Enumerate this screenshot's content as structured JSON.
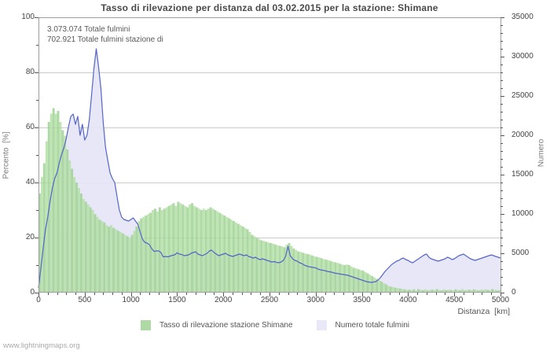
{
  "title": "Tasso di rilevazione per distanza dal 03.02.2015 per la stazione: Shimane",
  "annotations": {
    "line1": "3.073.074 Totale fulmini",
    "line2": "702.921 Totale fulmini stazione di"
  },
  "watermark": "www.lightningmaps.org",
  "legend": {
    "items": [
      {
        "label": "Tasso di rilevazione stazione Shimane",
        "color": "#aed8a4"
      },
      {
        "label": "Numero totale fulmini",
        "color": "#e8e8f8"
      }
    ]
  },
  "colors": {
    "bar_fill_even": "rgba(160,209,150,0.85)",
    "bar_fill_odd": "rgba(180,224,166,0.85)",
    "area_fill": "rgba(228,228,247,0.9)",
    "line": "#5464c8",
    "grid": "#cbcbcb",
    "border": "#9e9e9e",
    "tick": "#555555"
  },
  "chart_data": {
    "type": "composite",
    "subtypes": [
      "bar",
      "area-line"
    ],
    "title": "Tasso di rilevazione per distanza dal 03.02.2015 per la stazione: Shimane",
    "xlabel": "Distanza  [km]",
    "ylabel_left": "Percento  [%]",
    "ylabel_right": "Numero",
    "x_range": [
      0,
      5000
    ],
    "y_left_range": [
      0,
      100
    ],
    "y_right_range": [
      0,
      35000
    ],
    "x_ticks": [
      0,
      500,
      1000,
      1500,
      2000,
      2500,
      3000,
      3500,
      4000,
      4500,
      5000
    ],
    "y_left_ticks": [
      0,
      20,
      40,
      60,
      80,
      100
    ],
    "y_right_ticks": [
      0,
      5000,
      10000,
      15000,
      20000,
      25000,
      30000,
      35000
    ],
    "x_minor_step": 100,
    "y_left_minor_step": 10,
    "y_right_minor_step": 1000,
    "grid": "horizontal-only",
    "legend_position": "bottom-center",
    "x_start": 0,
    "x_step": 25,
    "series": [
      {
        "name": "Tasso di rilevazione stazione Shimane",
        "type": "bar",
        "axis": "left",
        "unit": "%",
        "values": [
          36,
          42,
          47,
          55,
          62,
          65,
          67,
          65,
          66,
          62,
          59,
          57,
          52,
          48,
          45,
          42,
          40,
          38,
          36,
          34,
          33,
          32,
          31,
          30,
          28.5,
          27.5,
          26.5,
          26,
          25.5,
          24.5,
          24,
          24.5,
          23.5,
          23,
          22.5,
          22,
          21.5,
          21,
          20.5,
          20,
          21,
          22.5,
          24,
          26,
          27,
          27.5,
          28,
          28.5,
          29,
          30,
          30.5,
          29.5,
          31,
          30,
          30.5,
          31,
          31.5,
          32,
          32.5,
          31.5,
          33,
          32.5,
          32,
          31.5,
          31,
          32,
          32.5,
          31.5,
          31,
          30.5,
          30,
          30.5,
          30,
          30.5,
          31,
          30.5,
          30,
          29.5,
          29,
          28.5,
          28,
          27.5,
          27,
          26.5,
          26,
          25.5,
          25,
          24.5,
          24,
          23.5,
          23,
          22,
          21,
          20.5,
          20,
          19.5,
          19,
          18.8,
          18.5,
          18.2,
          18,
          17.8,
          17.5,
          17.2,
          17,
          16.8,
          16.5,
          17.5,
          18,
          17,
          16,
          15.5,
          15,
          14.8,
          14.5,
          14.2,
          14,
          13.8,
          13.5,
          13.2,
          13,
          12.8,
          12.5,
          12.2,
          12,
          11.8,
          11.5,
          11.2,
          11,
          10.8,
          10.5,
          10.2,
          10,
          10.2,
          10,
          9.5,
          9,
          8.8,
          8.5,
          8.2,
          8,
          7.5,
          7,
          6.5,
          6,
          5.5,
          5,
          4.5,
          4,
          3.5,
          3,
          2.5,
          2.2,
          2,
          1.8,
          1.6,
          1.5,
          1.3,
          1.2,
          1,
          1.1,
          0.9,
          1.2,
          0.8,
          1.3,
          1,
          0.9,
          1.2,
          0.8,
          1,
          1.1,
          0.9,
          1.3,
          1,
          0.8,
          1.2,
          0.9,
          1.1,
          1,
          0.8,
          1.2,
          1,
          0.9,
          1.3,
          0.8,
          1,
          1.1,
          0.9,
          1.2,
          1,
          0.8,
          1.1,
          0.9,
          1.2,
          1,
          0.9,
          1.3,
          1,
          0.8,
          1.1,
          1
        ]
      },
      {
        "name": "Numero totale fulmini",
        "type": "area-line",
        "axis": "right",
        "unit": "fulmini",
        "values": [
          600,
          3000,
          5600,
          8000,
          9600,
          11600,
          13300,
          14500,
          15200,
          16500,
          17600,
          18400,
          19600,
          21100,
          22400,
          22700,
          21400,
          22400,
          20000,
          21400,
          19400,
          20000,
          22000,
          25200,
          28500,
          31000,
          28700,
          26000,
          21700,
          18500,
          16800,
          15200,
          14500,
          14000,
          12200,
          10500,
          9600,
          9300,
          9200,
          9100,
          9300,
          9500,
          9100,
          8700,
          7700,
          6800,
          6400,
          6300,
          6100,
          5600,
          5250,
          5300,
          5320,
          5100,
          4550,
          4600,
          4550,
          4650,
          4750,
          4800,
          5075,
          4900,
          4850,
          4700,
          4750,
          4800,
          5000,
          5100,
          5200,
          4900,
          4800,
          4700,
          4850,
          5000,
          5300,
          5400,
          5100,
          4900,
          4700,
          4800,
          4900,
          5000,
          4800,
          4700,
          4600,
          4700,
          4800,
          4900,
          4800,
          4700,
          4800,
          4600,
          4500,
          4400,
          4500,
          4300,
          4200,
          4300,
          4200,
          4100,
          4000,
          3900,
          3950,
          3850,
          3800,
          3900,
          4100,
          4600,
          5900,
          4700,
          4300,
          4100,
          4000,
          3800,
          3700,
          3500,
          3400,
          3300,
          3250,
          3200,
          3150,
          3000,
          2900,
          2850,
          2800,
          2700,
          2650,
          2600,
          2500,
          2450,
          2400,
          2350,
          2300,
          2250,
          2200,
          2100,
          2000,
          1900,
          1800,
          1700,
          1600,
          1500,
          1400,
          1350,
          1300,
          1350,
          1400,
          1600,
          1900,
          2300,
          2700,
          3000,
          3300,
          3600,
          3800,
          4000,
          4100,
          4300,
          4400,
          4200,
          4100,
          3900,
          3800,
          4000,
          4200,
          4400,
          4600,
          4800,
          4900,
          4500,
          4300,
          4200,
          4100,
          4000,
          4100,
          4200,
          4300,
          4500,
          4400,
          4200,
          4300,
          4500,
          4700,
          4800,
          4900,
          4700,
          4500,
          4300,
          4200,
          4100,
          4200,
          4300,
          4400,
          4500,
          4600,
          4700,
          4800,
          4700,
          4600,
          4500,
          4400
        ]
      }
    ]
  }
}
